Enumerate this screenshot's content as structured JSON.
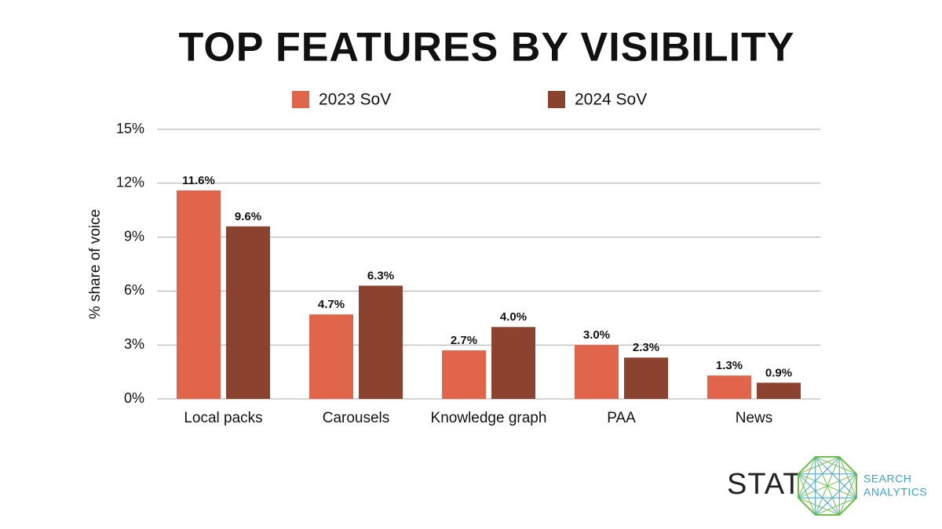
{
  "chart_data": {
    "type": "bar",
    "title": "TOP FEATURES BY VISIBILITY",
    "y_label": "% share of voice",
    "categories": [
      "Local packs",
      "Carousels",
      "Knowledge graph",
      "PAA",
      "News"
    ],
    "series": [
      {
        "name": "2023 SoV",
        "color": "#e0654a",
        "values": [
          11.6,
          4.7,
          2.7,
          3.0,
          1.3
        ],
        "value_labels": [
          "11.6%",
          "4.7%",
          "2.7%",
          "3.0%",
          "1.3%"
        ]
      },
      {
        "name": "2024 SoV",
        "color": "#8b4330",
        "values": [
          9.6,
          6.3,
          4.0,
          2.3,
          0.9
        ],
        "value_labels": [
          "9.6%",
          "6.3%",
          "4.0%",
          "2.3%",
          "0.9%"
        ]
      }
    ],
    "ylim": [
      0,
      15
    ],
    "yticks": [
      {
        "value": 0,
        "label": "0%"
      },
      {
        "value": 3,
        "label": "3%"
      },
      {
        "value": 6,
        "label": "6%"
      },
      {
        "value": 9,
        "label": "9%"
      },
      {
        "value": 12,
        "label": "12%"
      },
      {
        "value": 15,
        "label": "15%"
      }
    ],
    "grid": true
  },
  "logo": {
    "name": "STAT",
    "tagline": [
      "SEARCH",
      "ANALYTICS"
    ]
  }
}
